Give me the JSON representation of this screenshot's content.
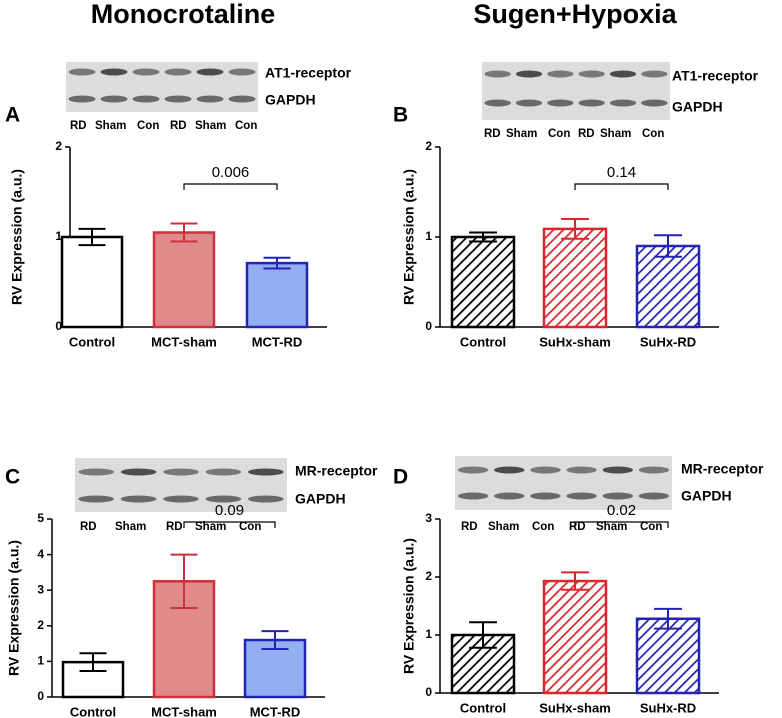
{
  "columns": [
    "Monocrotaline",
    "Sugen+Hypoxia"
  ],
  "chart_data": [
    {
      "type": "bar",
      "panel": "A",
      "blot": {
        "bands": [
          "AT1-receptor",
          "GAPDH"
        ],
        "lanes": [
          "RD",
          "Sham",
          "Con",
          "RD",
          "Sham",
          "Con"
        ],
        "lane_colors": [
          "#2b2ba6",
          "#d0282f",
          "#000000",
          "#2b2ba6",
          "#d0282f",
          "#000000"
        ]
      },
      "y_label": "RV Expression (a.u.)",
      "categories": [
        "Control",
        "MCT-sham",
        "MCT-RD"
      ],
      "values": [
        1.0,
        1.05,
        0.71
      ],
      "errors": [
        0.09,
        0.1,
        0.06
      ],
      "colors": [
        "#ffffff",
        "#e08a8c",
        "#94aef2"
      ],
      "edge_colors": [
        "#000000",
        "#c9323a",
        "#2424b2"
      ],
      "hatch": false,
      "ylim": [
        0,
        2
      ],
      "yticks": [
        0,
        1,
        2
      ],
      "annotation": "0.006"
    },
    {
      "type": "bar",
      "panel": "B",
      "blot": {
        "bands": [
          "AT1-receptor",
          "GAPDH"
        ],
        "lanes": [
          "RD",
          "Sham",
          "Con",
          "RD",
          "Sham",
          "Con"
        ],
        "lane_colors": [
          "#2b2ba6",
          "#d0282f",
          "#000000",
          "#2b2ba6",
          "#d0282f",
          "#000000"
        ]
      },
      "y_label": "RV Expression (a.u.)",
      "categories": [
        "Control",
        "SuHx-sham",
        "SuHx-RD"
      ],
      "values": [
        1.0,
        1.09,
        0.9
      ],
      "errors": [
        0.05,
        0.11,
        0.12
      ],
      "colors": [
        "#ffffff",
        "#ffffff",
        "#ffffff"
      ],
      "edge_colors": [
        "#000000",
        "#d9262e",
        "#2424b2"
      ],
      "hatch": true,
      "ylim": [
        0,
        2
      ],
      "yticks": [
        0,
        1,
        2
      ],
      "annotation": "0.14"
    },
    {
      "type": "bar",
      "panel": "C",
      "blot": {
        "bands": [
          "MR-receptor",
          "GAPDH"
        ],
        "lanes": [
          "RD",
          "Sham",
          "RD",
          "Sham",
          "Con"
        ],
        "lane_colors": [
          "#2b2ba6",
          "#d0282f",
          "#2b2ba6",
          "#d0282f",
          "#000000"
        ]
      },
      "y_label": "RV Expression (a.u.)",
      "categories": [
        "Control",
        "MCT-sham",
        "MCT-RD"
      ],
      "values": [
        0.98,
        3.25,
        1.6
      ],
      "errors": [
        0.25,
        0.75,
        0.25
      ],
      "colors": [
        "#ffffff",
        "#e08a8c",
        "#94aef2"
      ],
      "edge_colors": [
        "#000000",
        "#c9323a",
        "#2424b2"
      ],
      "hatch": false,
      "ylim": [
        0,
        5
      ],
      "yticks": [
        0,
        1,
        2,
        3,
        4,
        5
      ],
      "annotation": "0.09"
    },
    {
      "type": "bar",
      "panel": "D",
      "blot": {
        "bands": [
          "MR-receptor",
          "GAPDH"
        ],
        "lanes": [
          "RD",
          "Sham",
          "Con",
          "RD",
          "Sham",
          "Con"
        ],
        "lane_colors": [
          "#2b2ba6",
          "#d0282f",
          "#000000",
          "#2b2ba6",
          "#d0282f",
          "#000000"
        ]
      },
      "y_label": "RV Expression (a.u.)",
      "categories": [
        "Control",
        "SuHx-sham",
        "SuHx-RD"
      ],
      "values": [
        1.0,
        1.93,
        1.28
      ],
      "errors": [
        0.22,
        0.15,
        0.17
      ],
      "colors": [
        "#ffffff",
        "#ffffff",
        "#ffffff"
      ],
      "edge_colors": [
        "#000000",
        "#d9262e",
        "#2424b2"
      ],
      "hatch": true,
      "ylim": [
        0,
        3
      ],
      "yticks": [
        0,
        1,
        2,
        3
      ],
      "annotation": "0.02"
    }
  ]
}
